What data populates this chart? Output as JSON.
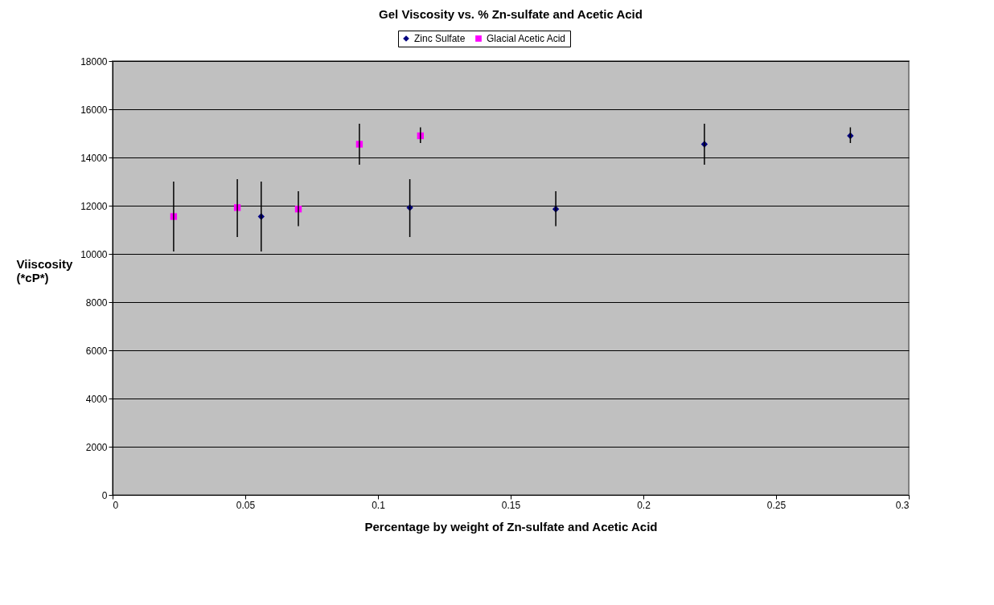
{
  "chart_data": {
    "type": "scatter",
    "title": "Gel Viscosity vs. % Zn-sulfate and Acetic Acid",
    "xlabel": "Percentage by weight of Zn-sulfate and Acetic Acid",
    "ylabel": "Viiscosity (*cP*)",
    "series": [
      {
        "name": "Zinc Sulfate",
        "color": "#000080",
        "marker": "diamond",
        "x": [
          0.056,
          0.112,
          0.167,
          0.223,
          0.278
        ],
        "values": [
          11550,
          11920,
          11860,
          14550,
          14900
        ],
        "errors": [
          [
            10100,
            13000
          ],
          [
            10700,
            13100
          ],
          [
            11150,
            12600
          ],
          [
            13700,
            15400
          ],
          [
            14600,
            15250
          ]
        ]
      },
      {
        "name": "Glacial Acetic Acid",
        "color": "#ff00ff",
        "marker": "square",
        "x": [
          0.023,
          0.047,
          0.07,
          0.093,
          0.116
        ],
        "values": [
          11550,
          11920,
          11860,
          14550,
          14900
        ],
        "errors": [
          [
            10100,
            13000
          ],
          [
            10700,
            13100
          ],
          [
            11150,
            12600
          ],
          [
            13700,
            15400
          ],
          [
            14600,
            15250
          ]
        ]
      }
    ],
    "xlim": [
      0,
      0.3
    ],
    "xticks": [
      0,
      0.05,
      0.1,
      0.15,
      0.2,
      0.25,
      0.3
    ],
    "ylim": [
      0,
      18000
    ],
    "yticks": [
      0,
      2000,
      4000,
      6000,
      8000,
      10000,
      12000,
      14000,
      16000,
      18000
    ],
    "grid": "y",
    "legend": "top"
  }
}
